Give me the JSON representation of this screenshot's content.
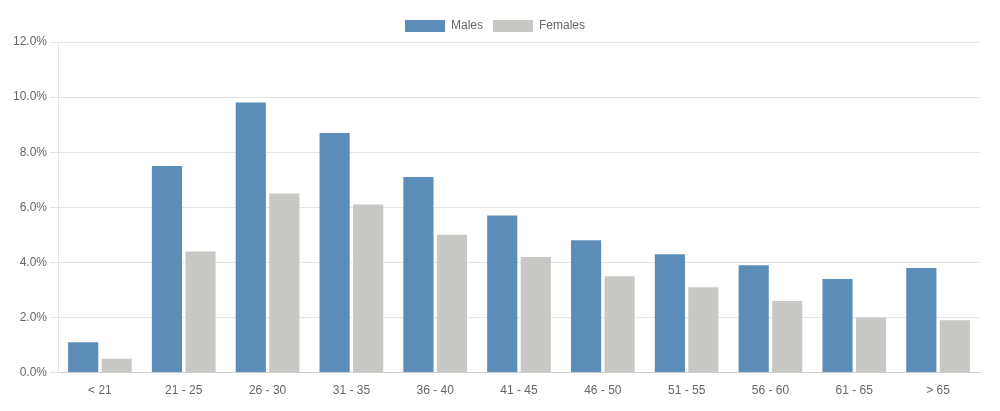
{
  "chart_data": {
    "type": "bar",
    "categories": [
      "< 21",
      "21 - 25",
      "26 - 30",
      "31 - 35",
      "36 - 40",
      "41 - 45",
      "46 - 50",
      "51 - 55",
      "56 - 60",
      "61 - 65",
      "> 65"
    ],
    "series": [
      {
        "name": "Males",
        "color": "#5B8DB8",
        "values": [
          0.011,
          0.075,
          0.098,
          0.087,
          0.071,
          0.057,
          0.048,
          0.043,
          0.039,
          0.034,
          0.038
        ]
      },
      {
        "name": "Females",
        "color": "#C8C8C4",
        "values": [
          0.005,
          0.044,
          0.065,
          0.061,
          0.05,
          0.042,
          0.035,
          0.031,
          0.026,
          0.02,
          0.019
        ]
      }
    ],
    "ylim": [
      0,
      0.12
    ],
    "yticks": [
      {
        "value": 0.0,
        "label": "0.0%"
      },
      {
        "value": 0.02,
        "label": "2.0%"
      },
      {
        "value": 0.04,
        "label": "4.0%"
      },
      {
        "value": 0.06,
        "label": "6.0%"
      },
      {
        "value": 0.08,
        "label": "8.0%"
      },
      {
        "value": 0.1,
        "label": "10.0%"
      },
      {
        "value": 0.12,
        "label": "12.0%"
      }
    ],
    "grid": true,
    "legend": "top"
  }
}
